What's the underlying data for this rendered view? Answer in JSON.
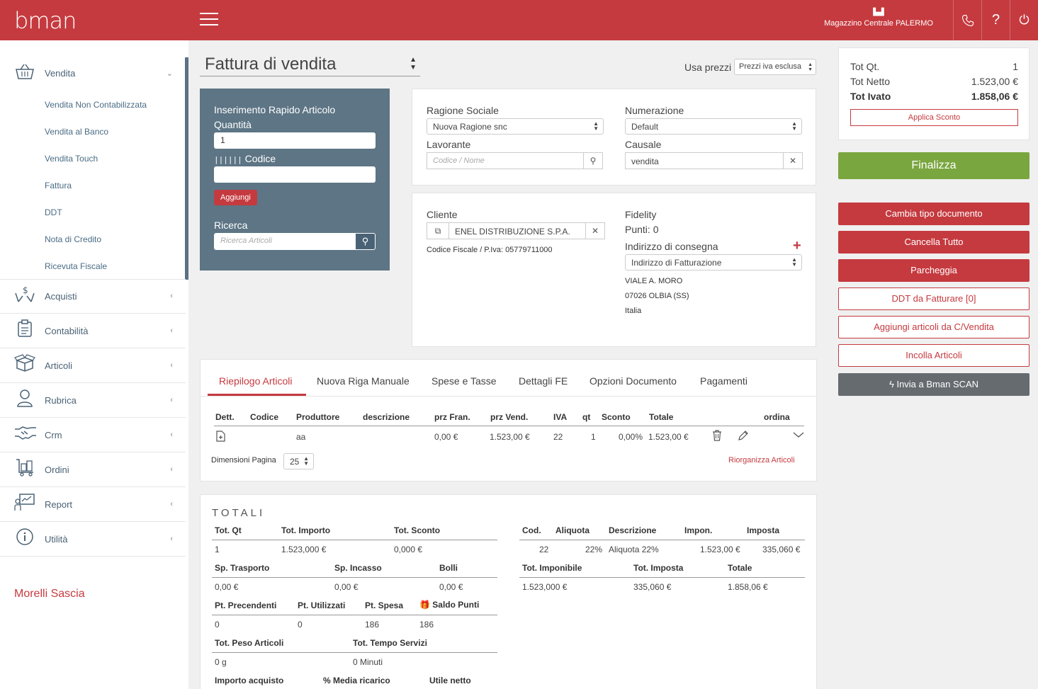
{
  "header": {
    "logo": "bman",
    "warehouse": "Magazzino Centrale PALERMO",
    "icons": [
      "factory-icon",
      "phone-icon",
      "help-icon",
      "power-icon"
    ]
  },
  "sidebar": {
    "vendita": {
      "label": "Vendita",
      "icon": "basket-icon",
      "chevron": "⌄"
    },
    "vendita_items": [
      "Vendita Non Contabilizzata",
      "Vendita al Banco",
      "Vendita Touch",
      "Fattura",
      "DDT",
      "Nota di Credito",
      "Ricevuta Fiscale"
    ],
    "items": [
      {
        "label": "Acquisti",
        "icon": "hands-money-icon"
      },
      {
        "label": "Contabilità",
        "icon": "clipboard-icon"
      },
      {
        "label": "Articoli",
        "icon": "box-icon"
      },
      {
        "label": "Rubrica",
        "icon": "person-icon"
      },
      {
        "label": "Crm",
        "icon": "handshake-icon"
      },
      {
        "label": "Ordini",
        "icon": "cart-icon"
      },
      {
        "label": "Report",
        "icon": "report-icon"
      },
      {
        "label": "Utilità",
        "icon": "info-icon"
      }
    ],
    "user": "Morelli Sascia"
  },
  "document": {
    "type": "Fattura di vendita",
    "usa_prezzi_label": "Usa prezzi",
    "usa_prezzi_value": "Prezzi iva esclusa"
  },
  "quick_insert": {
    "title": "Inserimento Rapido Articolo",
    "quantita_label": "Quantità",
    "quantita_value": "1",
    "codice_label": "Codice",
    "codice_value": "",
    "add_button": "Aggiungi",
    "ricerca_label": "Ricerca",
    "ricerca_placeholder": "Ricerca Articoli"
  },
  "doc_info": {
    "ragione_label": "Ragione Sociale",
    "ragione_value": "Nuova Ragione snc",
    "numerazione_label": "Numerazione",
    "numerazione_value": "Default",
    "lavorante_label": "Lavorante",
    "lavorante_placeholder": "Codice / Nome",
    "causale_label": "Causale",
    "causale_value": "vendita"
  },
  "cliente": {
    "label": "Cliente",
    "value": "ENEL DISTRIBUZIONE S.P.A.",
    "cf_piva": "Codice Fiscale / P.Iva: 05779711000",
    "fidelity_label": "Fidelity",
    "punti": "Punti: 0",
    "indirizzo_label": "Indirizzo di consegna",
    "indirizzo_select": "Indirizzo di Fatturazione",
    "address_line1": "VIALE A. MORO",
    "address_line2": "07026 OLBIA (SS)",
    "address_line3": "Italia"
  },
  "summary": {
    "tot_qt_label": "Tot Qt.",
    "tot_qt_value": "1",
    "tot_netto_label": "Tot Netto",
    "tot_netto_value": "1.523,00 €",
    "tot_ivato_label": "Tot Ivato",
    "tot_ivato_value": "1.858,06 €",
    "applica_sconto": "Applica Sconto"
  },
  "actions": {
    "finalizza": "Finalizza",
    "cambia_tipo": "Cambia tipo documento",
    "cancella_tutto": "Cancella Tutto",
    "parcheggia": "Parcheggia",
    "ddt_da_fatturare": "DDT da Fatturare [0]",
    "aggiungi_cvendita": "Aggiungi articoli da C/Vendita",
    "incolla_articoli": "Incolla Articoli",
    "invia_scan": "Invia a Bman SCAN"
  },
  "tabs": [
    "Riepilogo Articoli",
    "Nuova Riga Manuale",
    "Spese e Tasse",
    "Dettagli FE",
    "Opzioni Documento",
    "Pagamenti"
  ],
  "articles_table": {
    "headers": [
      "Dett.",
      "Codice",
      "Produttore",
      "descrizione",
      "prz Fran.",
      "prz Vend.",
      "IVA",
      "qt",
      "Sconto",
      "Totale",
      "ordina"
    ],
    "row": {
      "codice": "",
      "produttore": "aa",
      "descrizione": "",
      "prz_fran": "0,00 €",
      "prz_vend": "1.523,00 €",
      "iva": "22",
      "qt": "1",
      "sconto": "0,00%",
      "totale": "1.523,00 €"
    },
    "page_size_label": "Dimensioni Pagina",
    "page_size_value": "25",
    "riorganizza": "Riorganizza Articoli"
  },
  "totali": {
    "title": "TOTALI",
    "h1": [
      "Tot. Qt",
      "Tot. Importo",
      "Tot. Sconto"
    ],
    "v1": [
      "1",
      "1.523,000 €",
      "0,000 €"
    ],
    "h2": [
      "Sp. Trasporto",
      "Sp. Incasso",
      "Bolli"
    ],
    "v2": [
      "0,00 €",
      "0,00 €",
      "0,00 €"
    ],
    "h3": [
      "Pt. Precendenti",
      "Pt. Utilizzati",
      "Pt. Spesa",
      "Saldo Punti"
    ],
    "v3": [
      "0",
      "0",
      "186",
      "186"
    ],
    "h4": [
      "Tot. Peso Articoli",
      "Tot. Tempo Servizi"
    ],
    "v4": [
      "0 g",
      "0 Minuti"
    ],
    "h5": [
      "Importo acquisto",
      "% Media ricarico",
      "Utile netto"
    ],
    "iva_h": [
      "Cod.",
      "Aliquota",
      "Descrizione",
      "Impon.",
      "Imposta"
    ],
    "iva_v": [
      "22",
      "22%",
      "Aliquota 22%",
      "1.523,00 €",
      "335,060 €"
    ],
    "tot_h": [
      "Tot. Imponibile",
      "Tot. Imposta",
      "Totale"
    ],
    "tot_v": [
      "1.523,000 €",
      "335,060 €",
      "1.858,06 €"
    ]
  }
}
